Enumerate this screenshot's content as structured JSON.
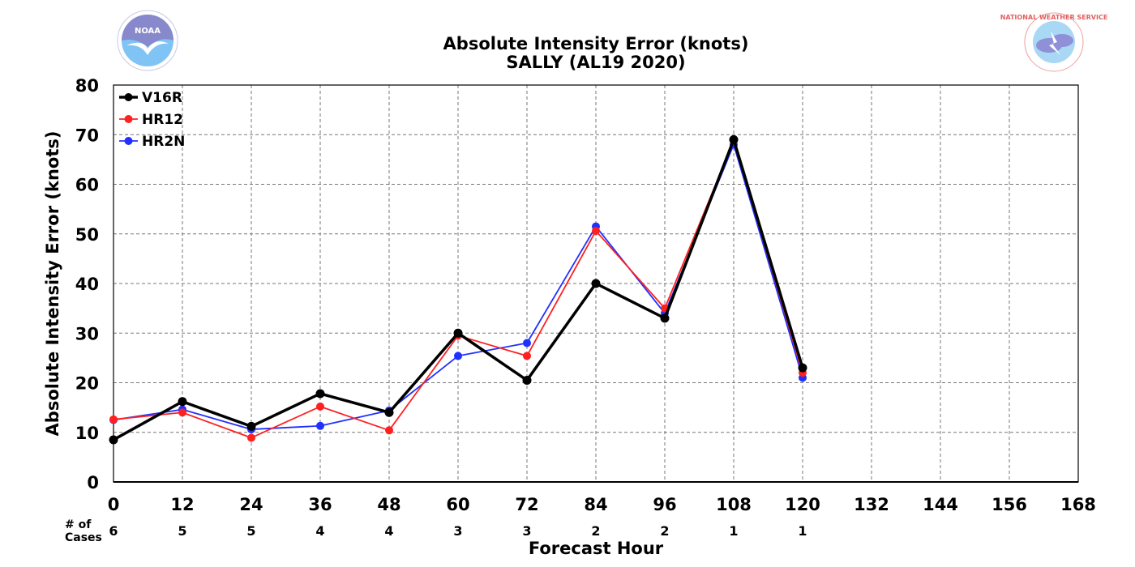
{
  "chart_data": {
    "type": "line",
    "title": "Absolute Intensity Error (knots)",
    "subtitle": "SALLY (AL19 2020)",
    "xlabel": "Forecast Hour",
    "ylabel": "Absolute Intensity Error (knots)",
    "xlim": [
      0,
      168
    ],
    "ylim": [
      0,
      80
    ],
    "xticks": [
      0,
      12,
      24,
      36,
      48,
      60,
      72,
      84,
      96,
      108,
      120,
      132,
      144,
      156,
      168
    ],
    "yticks": [
      0,
      10,
      20,
      30,
      40,
      50,
      60,
      70,
      80
    ],
    "grid": true,
    "legend_position": "top-left",
    "x": [
      0,
      12,
      24,
      36,
      48,
      60,
      72,
      84,
      96,
      108,
      120
    ],
    "series": [
      {
        "name": "V16R",
        "color": "#000000",
        "values": [
          8.5,
          16.2,
          11.2,
          17.8,
          14.0,
          30.0,
          20.5,
          40.0,
          33.0,
          69.0,
          23.0
        ]
      },
      {
        "name": "HR12",
        "color": "#ff2020",
        "values": [
          12.6,
          14.0,
          8.9,
          15.2,
          10.4,
          29.5,
          25.4,
          50.6,
          35.0,
          68.8,
          22.0
        ]
      },
      {
        "name": "HR2N",
        "color": "#2030ff",
        "values": [
          12.5,
          14.6,
          10.6,
          11.3,
          14.4,
          25.4,
          28.0,
          51.5,
          34.0,
          68.0,
          21.0
        ]
      }
    ],
    "cases_label": "# of\nCases",
    "cases": [
      6,
      5,
      5,
      4,
      4,
      3,
      3,
      2,
      2,
      1,
      1
    ]
  },
  "logos": {
    "left": {
      "icon": "noaa-logo",
      "text": "NOAA"
    },
    "right": {
      "icon": "national-weather-service-logo",
      "text": "NATIONAL WEATHER SERVICE"
    }
  }
}
